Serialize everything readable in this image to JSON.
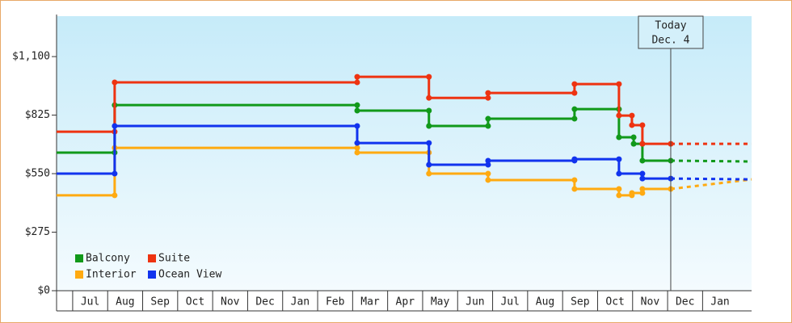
{
  "chart_data": {
    "type": "step",
    "xlim": [
      -0.46,
      19.4
    ],
    "xticks": [
      {
        "value": -1,
        "label": ""
      },
      {
        "value": 0,
        "label": "Jul"
      },
      {
        "value": 1,
        "label": "Aug"
      },
      {
        "value": 2,
        "label": "Sep"
      },
      {
        "value": 3,
        "label": "Oct"
      },
      {
        "value": 4,
        "label": "Nov"
      },
      {
        "value": 5,
        "label": "Dec"
      },
      {
        "value": 6,
        "label": "Jan"
      },
      {
        "value": 7,
        "label": "Feb"
      },
      {
        "value": 8,
        "label": "Mar"
      },
      {
        "value": 9,
        "label": "Apr"
      },
      {
        "value": 10,
        "label": "May"
      },
      {
        "value": 11,
        "label": "Jun"
      },
      {
        "value": 12,
        "label": "Jul"
      },
      {
        "value": 13,
        "label": "Aug"
      },
      {
        "value": 14,
        "label": "Sep"
      },
      {
        "value": 15,
        "label": "Oct"
      },
      {
        "value": 16,
        "label": "Nov"
      },
      {
        "value": 17,
        "label": "Dec"
      },
      {
        "value": 18,
        "label": "Jan"
      }
    ],
    "ylim": [
      0,
      1290
    ],
    "yticks": [
      {
        "value": 0,
        "label": "$0"
      },
      {
        "value": 275,
        "label": "$275"
      },
      {
        "value": 550,
        "label": "$550"
      },
      {
        "value": 825,
        "label": "$825"
      },
      {
        "value": 1100,
        "label": "$1,100"
      }
    ],
    "today": {
      "x": 17.09,
      "label": "Today",
      "date": "Dec. 4"
    },
    "projection_x": 19.4,
    "series": [
      {
        "name": "Balcony",
        "color": "#11991a",
        "x": [
          -0.46,
          1.2,
          8.13,
          10.18,
          11.87,
          14.34,
          15.61,
          16.03,
          16.28,
          17.09
        ],
        "values": [
          649,
          872,
          846,
          774,
          808,
          853,
          721,
          690,
          611,
          611
        ],
        "projection": 607
      },
      {
        "name": "Suite",
        "color": "#ee3311",
        "x": [
          -0.46,
          1.2,
          8.13,
          10.18,
          11.87,
          14.34,
          15.61,
          15.98,
          16.28,
          17.09
        ],
        "values": [
          747,
          979,
          1005,
          906,
          929,
          971,
          823,
          778,
          690,
          690
        ],
        "projection": 690
      },
      {
        "name": "Interior",
        "color": "#ffaa11",
        "x": [
          -0.46,
          1.2,
          8.13,
          10.18,
          11.87,
          14.34,
          15.61,
          15.98,
          16.28,
          17.09
        ],
        "values": [
          448,
          671,
          649,
          550,
          520,
          478,
          448,
          459,
          478,
          478
        ],
        "projection": 523
      },
      {
        "name": "Ocean View",
        "color": "#1133ee",
        "x": [
          -0.46,
          1.2,
          8.13,
          10.18,
          11.87,
          14.34,
          15.61,
          16.28,
          17.09
        ],
        "values": [
          550,
          774,
          694,
          592,
          611,
          618,
          550,
          527,
          527
        ],
        "projection": 523
      }
    ]
  }
}
